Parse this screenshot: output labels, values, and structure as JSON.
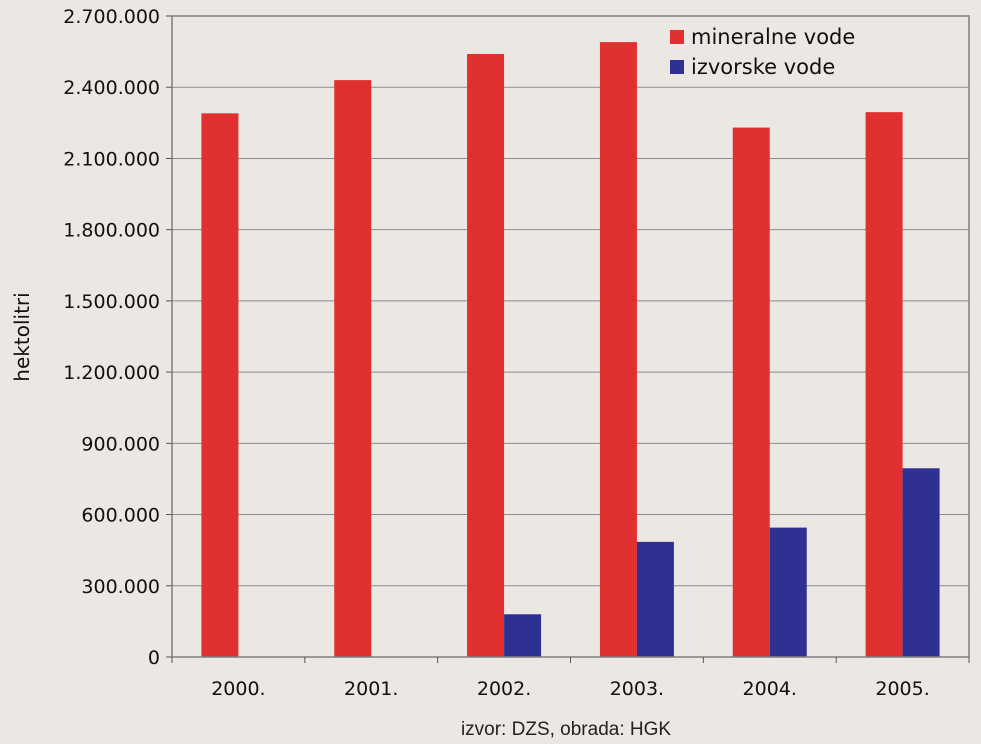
{
  "chart_data": {
    "type": "bar",
    "categories": [
      "2000.",
      "2001.",
      "2002.",
      "2003.",
      "2004.",
      "2005."
    ],
    "series": [
      {
        "name": "mineralne vode",
        "color": "#e03030",
        "values": [
          2290000,
          2430000,
          2540000,
          2590000,
          2230000,
          2295000
        ]
      },
      {
        "name": "izvorske vode",
        "color": "#2e3192",
        "values": [
          0,
          0,
          180000,
          485000,
          545000,
          795000
        ]
      }
    ],
    "ylabel": "hektolitri",
    "ylim": [
      0,
      2700000
    ],
    "y_ticks": [
      "0",
      "300.000",
      "600.000",
      "900.000",
      "1.200.000",
      "1.500.000",
      "1.800.000",
      "2.100.000",
      "2.400.000",
      "2.700.000"
    ],
    "grid": true,
    "legend_position": "top-right",
    "source_note": "izvor: DZS, obrada: HGK"
  }
}
